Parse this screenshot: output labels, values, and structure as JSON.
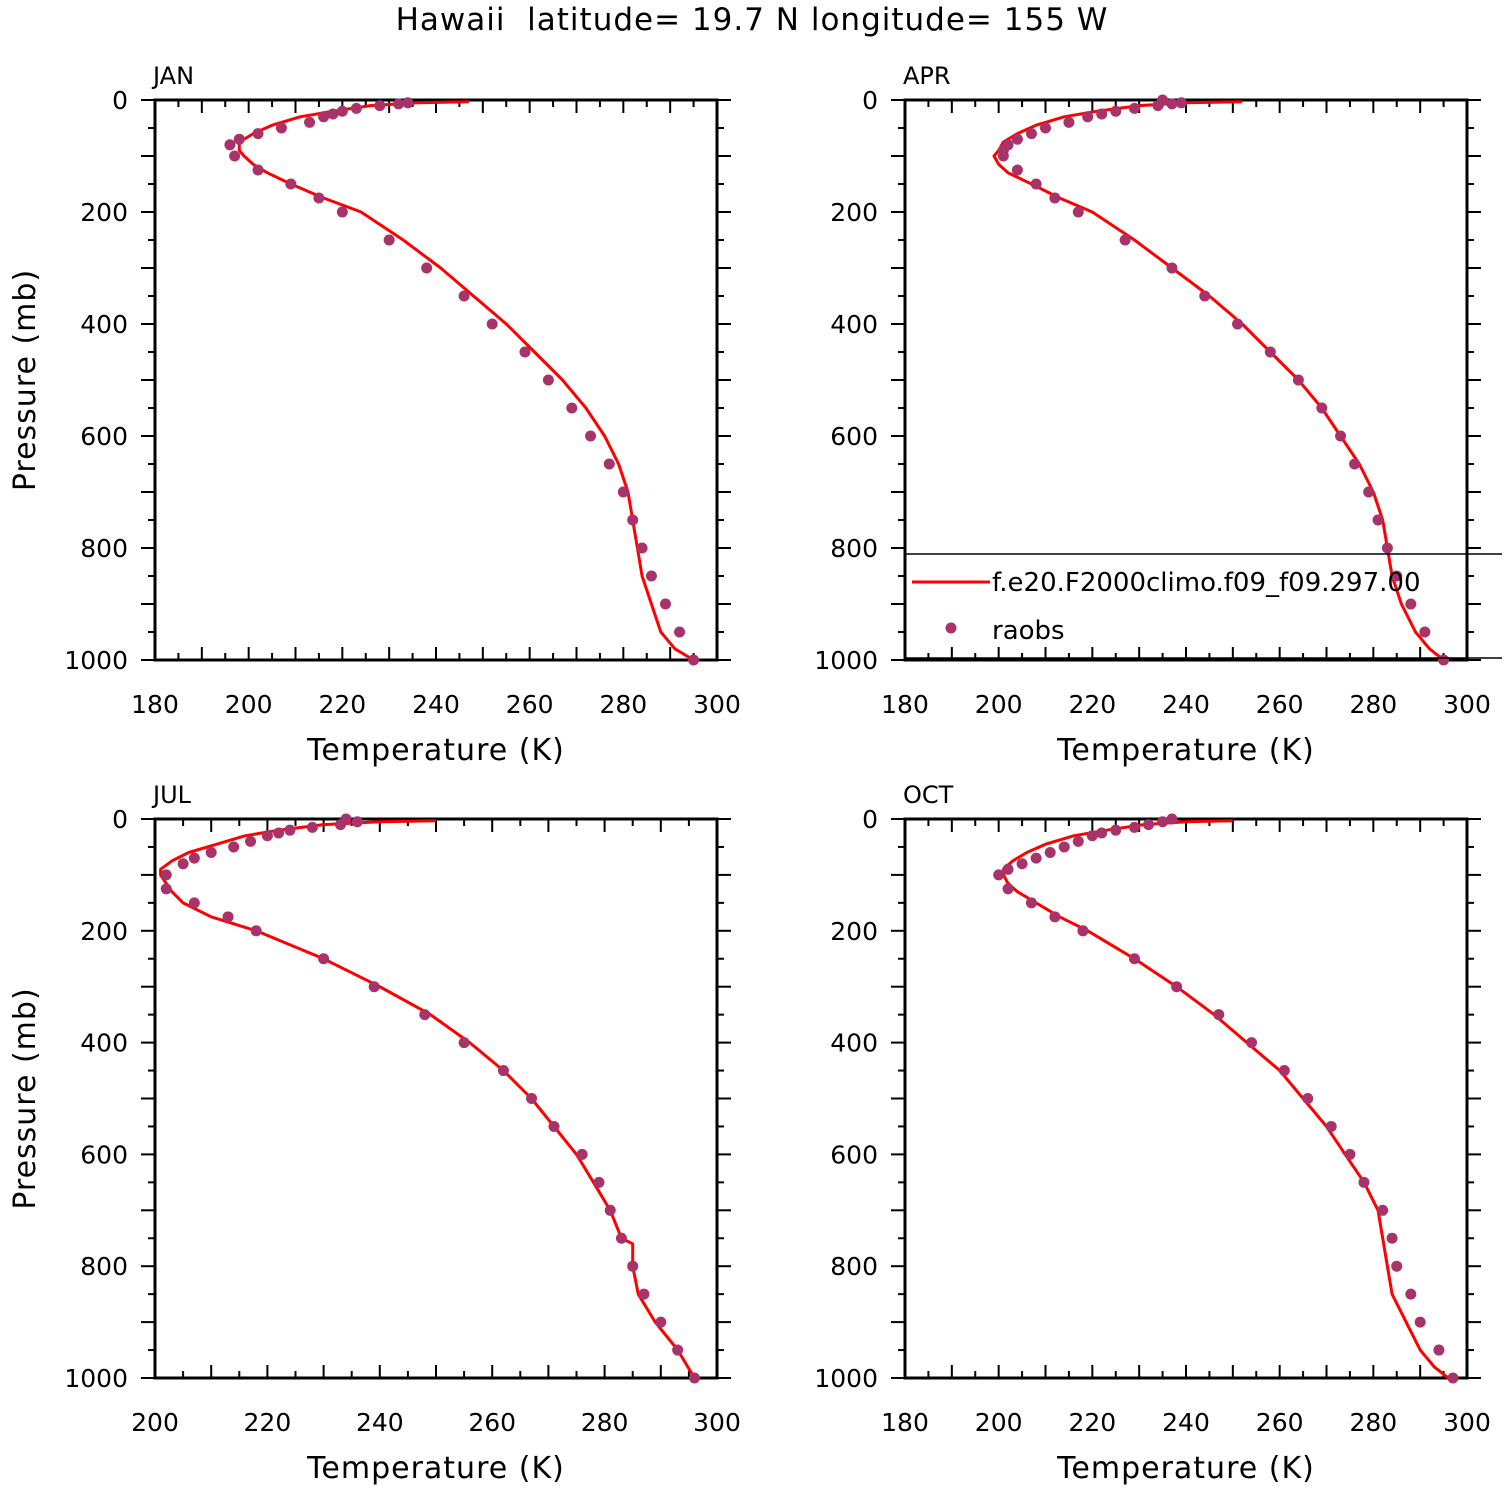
{
  "title": "Hawaii  latitude= 19.7 N longitude= 155 W",
  "colors": {
    "model": "#ff0000",
    "obs": "#a8326a",
    "axes": "#000000"
  },
  "legend": {
    "model_label": "f.e20.F2000climo.f09_f09.297.00",
    "obs_label": "raobs",
    "panel": "APR"
  },
  "chart_data": [
    {
      "type": "line",
      "panel": "JAN",
      "xlabel": "Temperature (K)",
      "ylabel": "Pressure (mb)",
      "xlim": [
        180,
        300
      ],
      "ylim": [
        0,
        1000
      ],
      "y_inverted": true,
      "xticks": [
        180,
        200,
        220,
        240,
        260,
        280,
        300
      ],
      "yticks": [
        0,
        200,
        400,
        600,
        800,
        1000
      ],
      "series": [
        {
          "name": "f.e20.F2000climo.f09_f09.297.00",
          "kind": "line",
          "x": [
            247,
            236,
            226,
            218,
            211,
            205,
            201,
            198,
            198,
            199,
            201,
            204,
            209,
            216,
            224,
            233,
            241,
            248,
            255,
            261,
            267,
            272,
            276,
            279,
            281,
            282,
            283,
            284,
            286,
            288,
            291,
            295
          ],
          "y": [
            3,
            5,
            10,
            20,
            30,
            45,
            60,
            75,
            90,
            100,
            115,
            130,
            150,
            175,
            200,
            250,
            300,
            350,
            400,
            450,
            500,
            550,
            600,
            650,
            700,
            750,
            800,
            850,
            900,
            950,
            980,
            1000
          ]
        },
        {
          "name": "raobs",
          "kind": "scatter",
          "x": [
            234,
            232,
            228,
            223,
            220,
            218,
            216,
            213,
            207,
            202,
            198,
            196,
            197,
            202,
            209,
            215,
            220,
            230,
            238,
            246,
            252,
            259,
            264,
            269,
            273,
            277,
            280,
            282,
            284,
            286,
            289,
            292,
            295
          ],
          "y": [
            5,
            7,
            10,
            15,
            20,
            25,
            30,
            40,
            50,
            60,
            70,
            80,
            100,
            125,
            150,
            175,
            200,
            250,
            300,
            350,
            400,
            450,
            500,
            550,
            600,
            650,
            700,
            750,
            800,
            850,
            900,
            950,
            1000
          ]
        }
      ]
    },
    {
      "type": "line",
      "panel": "APR",
      "xlabel": "Temperature (K)",
      "ylabel": "",
      "xlim": [
        180,
        300
      ],
      "ylim": [
        0,
        1000
      ],
      "y_inverted": true,
      "xticks": [
        180,
        200,
        220,
        240,
        260,
        280,
        300
      ],
      "yticks": [
        0,
        200,
        400,
        600,
        800,
        1000
      ],
      "series": [
        {
          "name": "f.e20.F2000climo.f09_f09.297.00",
          "kind": "line",
          "x": [
            252,
            240,
            230,
            221,
            214,
            208,
            204,
            201,
            200,
            199,
            200,
            202,
            207,
            213,
            220,
            229,
            237,
            245,
            252,
            258,
            264,
            269,
            273,
            277,
            280,
            282,
            283,
            284,
            286,
            289,
            292,
            295
          ],
          "y": [
            3,
            5,
            10,
            20,
            30,
            45,
            60,
            75,
            90,
            100,
            115,
            130,
            150,
            175,
            200,
            250,
            300,
            350,
            400,
            450,
            500,
            550,
            600,
            650,
            700,
            750,
            800,
            850,
            900,
            950,
            980,
            1000
          ]
        },
        {
          "name": "raobs",
          "kind": "scatter",
          "x": [
            235,
            239,
            237,
            234,
            229,
            225,
            222,
            219,
            215,
            210,
            207,
            204,
            202,
            201,
            201,
            204,
            208,
            212,
            217,
            227,
            237,
            244,
            251,
            258,
            264,
            269,
            273,
            276,
            279,
            281,
            283,
            285,
            288,
            291,
            295
          ],
          "y": [
            0,
            5,
            7,
            10,
            15,
            20,
            25,
            30,
            40,
            50,
            60,
            70,
            80,
            90,
            100,
            125,
            150,
            175,
            200,
            250,
            300,
            350,
            400,
            450,
            500,
            550,
            600,
            650,
            700,
            750,
            800,
            850,
            900,
            950,
            1000
          ]
        }
      ]
    },
    {
      "type": "line",
      "panel": "JUL",
      "xlabel": "Temperature (K)",
      "ylabel": "Pressure (mb)",
      "xlim": [
        200,
        300
      ],
      "ylim": [
        0,
        1000
      ],
      "y_inverted": true,
      "xticks": [
        200,
        220,
        240,
        260,
        280,
        300
      ],
      "yticks": [
        0,
        200,
        400,
        600,
        800,
        1000
      ],
      "series": [
        {
          "name": "f.e20.F2000climo.f09_f09.297.00",
          "kind": "line",
          "x": [
            250,
            240,
            230,
            222,
            216,
            211,
            206,
            203,
            201,
            201,
            202,
            203,
            205,
            210,
            218,
            230,
            240,
            249,
            256,
            262,
            267,
            271,
            275,
            278,
            281,
            283,
            285,
            285,
            286,
            289,
            293,
            296
          ],
          "y": [
            3,
            5,
            10,
            20,
            30,
            45,
            60,
            75,
            90,
            100,
            115,
            130,
            150,
            175,
            200,
            250,
            300,
            350,
            400,
            450,
            500,
            550,
            600,
            650,
            700,
            750,
            760,
            800,
            850,
            900,
            950,
            1000
          ]
        },
        {
          "name": "raobs",
          "kind": "scatter",
          "x": [
            234,
            236,
            233,
            228,
            224,
            222,
            220,
            217,
            214,
            210,
            207,
            205,
            202,
            202,
            207,
            213,
            218,
            230,
            239,
            248,
            255,
            262,
            267,
            271,
            276,
            279,
            281,
            283,
            285,
            287,
            290,
            293,
            296
          ],
          "y": [
            0,
            5,
            10,
            15,
            20,
            25,
            30,
            40,
            50,
            60,
            70,
            80,
            100,
            125,
            150,
            175,
            200,
            250,
            300,
            350,
            400,
            450,
            500,
            550,
            600,
            650,
            700,
            750,
            800,
            850,
            900,
            950,
            1000
          ]
        }
      ]
    },
    {
      "type": "line",
      "panel": "OCT",
      "xlabel": "Temperature (K)",
      "ylabel": "",
      "xlim": [
        180,
        300
      ],
      "ylim": [
        0,
        1000
      ],
      "y_inverted": true,
      "xticks": [
        180,
        200,
        220,
        240,
        260,
        280,
        300
      ],
      "yticks": [
        0,
        200,
        400,
        600,
        800,
        1000
      ],
      "series": [
        {
          "name": "f.e20.F2000climo.f09_f09.297.00",
          "kind": "line",
          "x": [
            250,
            240,
            231,
            223,
            216,
            210,
            206,
            203,
            201,
            201,
            202,
            204,
            208,
            213,
            219,
            229,
            238,
            246,
            253,
            260,
            265,
            270,
            274,
            278,
            281,
            282,
            283,
            284,
            287,
            290,
            293,
            296
          ],
          "y": [
            3,
            5,
            10,
            20,
            30,
            45,
            60,
            75,
            90,
            100,
            115,
            130,
            150,
            175,
            200,
            250,
            300,
            350,
            400,
            450,
            500,
            550,
            600,
            650,
            700,
            750,
            800,
            850,
            900,
            950,
            980,
            1000
          ]
        },
        {
          "name": "raobs",
          "kind": "scatter",
          "x": [
            237,
            235,
            232,
            229,
            225,
            222,
            220,
            217,
            214,
            211,
            208,
            205,
            202,
            200,
            202,
            207,
            212,
            218,
            229,
            238,
            247,
            254,
            261,
            266,
            271,
            275,
            278,
            282,
            284,
            285,
            288,
            290,
            294,
            297
          ],
          "y": [
            0,
            5,
            10,
            15,
            20,
            25,
            30,
            40,
            50,
            60,
            70,
            80,
            90,
            100,
            125,
            150,
            175,
            200,
            250,
            300,
            350,
            400,
            450,
            500,
            550,
            600,
            650,
            700,
            750,
            800,
            850,
            900,
            950,
            1000
          ]
        }
      ]
    }
  ]
}
